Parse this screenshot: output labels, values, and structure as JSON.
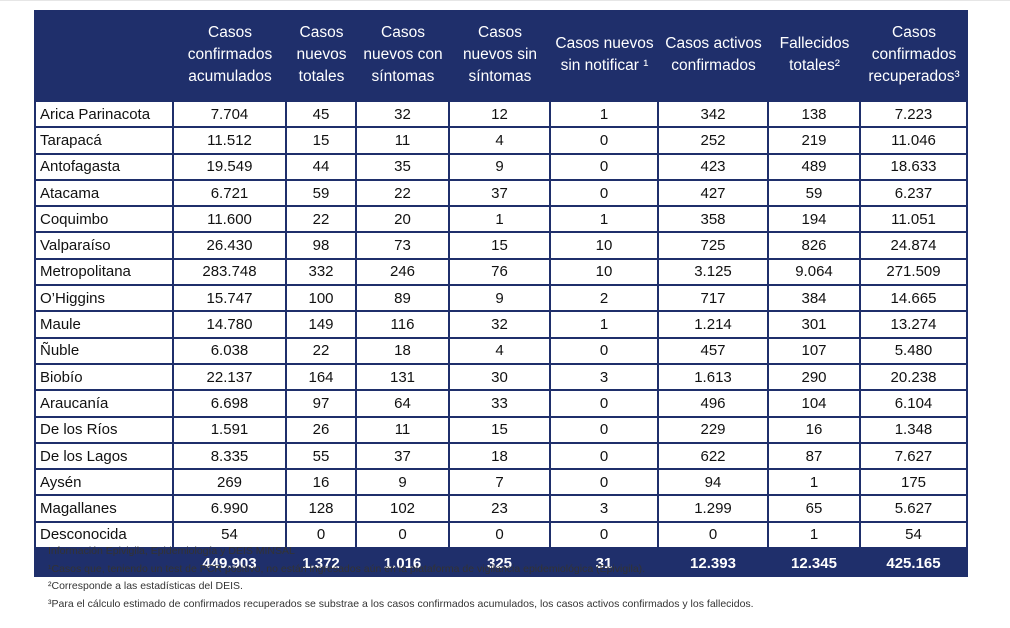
{
  "headers": [
    "",
    "Casos confirmados acumulados",
    "Casos nuevos totales",
    "Casos nuevos con síntomas",
    "Casos nuevos sin síntomas",
    "Casos nuevos sin notificar ¹",
    "Casos activos confirmados",
    "Fallecidos totales²",
    "Casos confirmados recuperados³"
  ],
  "rows": [
    [
      "Arica Parinacota",
      "7.704",
      "45",
      "32",
      "12",
      "1",
      "342",
      "138",
      "7.223"
    ],
    [
      "Tarapacá",
      "11.512",
      "15",
      "11",
      "4",
      "0",
      "252",
      "219",
      "11.046"
    ],
    [
      "Antofagasta",
      "19.549",
      "44",
      "35",
      "9",
      "0",
      "423",
      "489",
      "18.633"
    ],
    [
      "Atacama",
      "6.721",
      "59",
      "22",
      "37",
      "0",
      "427",
      "59",
      "6.237"
    ],
    [
      "Coquimbo",
      "11.600",
      "22",
      "20",
      "1",
      "1",
      "358",
      "194",
      "11.051"
    ],
    [
      "Valparaíso",
      "26.430",
      "98",
      "73",
      "15",
      "10",
      "725",
      "826",
      "24.874"
    ],
    [
      "Metropolitana",
      "283.748",
      "332",
      "246",
      "76",
      "10",
      "3.125",
      "9.064",
      "271.509"
    ],
    [
      "O’Higgins",
      "15.747",
      "100",
      "89",
      "9",
      "2",
      "717",
      "384",
      "14.665"
    ],
    [
      "Maule",
      "14.780",
      "149",
      "116",
      "32",
      "1",
      "1.214",
      "301",
      "13.274"
    ],
    [
      "Ñuble",
      "6.038",
      "22",
      "18",
      "4",
      "0",
      "457",
      "107",
      "5.480"
    ],
    [
      "Biobío",
      "22.137",
      "164",
      "131",
      "30",
      "3",
      "1.613",
      "290",
      "20.238"
    ],
    [
      "Araucanía",
      "6.698",
      "97",
      "64",
      "33",
      "0",
      "496",
      "104",
      "6.104"
    ],
    [
      "De los Ríos",
      "1.591",
      "26",
      "11",
      "15",
      "0",
      "229",
      "16",
      "1.348"
    ],
    [
      "De los Lagos",
      "8.335",
      "55",
      "37",
      "18",
      "0",
      "622",
      "87",
      "7.627"
    ],
    [
      "Aysén",
      "269",
      "16",
      "9",
      "7",
      "0",
      "94",
      "1",
      "175"
    ],
    [
      "Magallanes",
      "6.990",
      "128",
      "102",
      "23",
      "3",
      "1.299",
      "65",
      "5.627"
    ],
    [
      "Desconocida",
      "54",
      "0",
      "0",
      "0",
      "0",
      "0",
      "1",
      "54"
    ]
  ],
  "totals": [
    "",
    "449.903",
    "1.372",
    "1.016",
    "325",
    "31",
    "12.393",
    "12.345",
    "425.165"
  ],
  "notes": [
    "Información Epivigila, Epidemiología y DEIS MINSAL",
    "¹Casos que, teniendo un test de PCR positivo, no están ingresados aún en la plataforma de vigilancia epidemiológica (Epivigila).",
    "²Corresponde a las estadísticas del DEIS.",
    "³Para el cálculo estimado de confirmados recuperados se substrae a los casos confirmados acumulados, los casos activos confirmados y los fallecidos."
  ],
  "colors": {
    "header_bg": "#1f2f6b",
    "header_text": "#ffffff",
    "border": "#1f2f6b"
  }
}
